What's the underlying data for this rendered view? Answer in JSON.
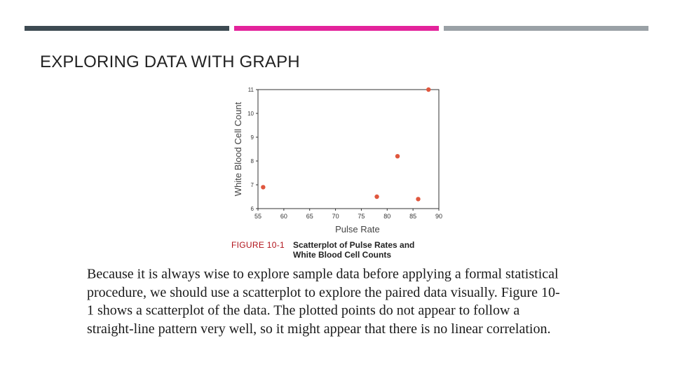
{
  "theme": {
    "bar_colors": [
      "#3d4a52",
      "#e3239b",
      "#9aa1a6"
    ],
    "point_color": "#e0573e",
    "caption_label_color": "#b0121a"
  },
  "slide": {
    "title": "EXPLORING DATA WITH GRAPH"
  },
  "figure": {
    "label": "FIGURE 10-1",
    "caption_line1": "Scatterplot of Pulse Rates and",
    "caption_line2": "White Blood Cell Counts"
  },
  "chart_data": {
    "type": "scatter",
    "xlabel": "Pulse Rate",
    "ylabel": "White Blood Cell Count",
    "xlim": [
      55,
      90
    ],
    "ylim": [
      6,
      11
    ],
    "xticks": [
      55,
      60,
      65,
      70,
      75,
      80,
      85,
      90
    ],
    "yticks": [
      6,
      7,
      8,
      9,
      10,
      11
    ],
    "grid": false,
    "points": [
      {
        "x": 56,
        "y": 6.9
      },
      {
        "x": 78,
        "y": 6.5
      },
      {
        "x": 82,
        "y": 8.2
      },
      {
        "x": 86,
        "y": 6.4
      },
      {
        "x": 88,
        "y": 11.0
      }
    ]
  },
  "body": {
    "paragraph": "Because it is always wise to explore sample data before applying a formal statistical procedure, we should use a scatterplot to explore the paired data visually. Figure 10-1 shows a scatterplot of the data. The plotted points do not appear to follow a straight-line pattern very well, so it might appear that there is no linear correlation."
  }
}
